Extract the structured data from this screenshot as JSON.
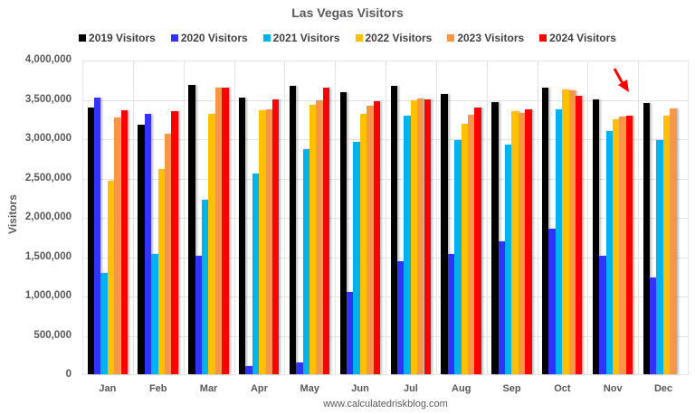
{
  "chart_data": {
    "type": "bar",
    "title": "Las Vegas Visitors",
    "xlabel": "",
    "ylabel": "Visitors",
    "ylim": [
      0,
      4000000
    ],
    "yticks": [
      "0",
      "500,000",
      "1,000,000",
      "1,500,000",
      "2,000,000",
      "2,500,000",
      "3,000,000",
      "3,500,000",
      "4,000,000"
    ],
    "grid": true,
    "legend_position": "top",
    "categories": [
      "Jan",
      "Feb",
      "Mar",
      "Apr",
      "May",
      "Jun",
      "Jul",
      "Aug",
      "Sep",
      "Oct",
      "Nov",
      "Dec"
    ],
    "series": [
      {
        "name": "2019 Visitors",
        "color": "#000000",
        "values": [
          3410000,
          3190000,
          3700000,
          3540000,
          3690000,
          3610000,
          3690000,
          3580000,
          3480000,
          3670000,
          3510000,
          3470000
        ]
      },
      {
        "name": "2020 Visitors",
        "color": "#3333ff",
        "values": [
          3540000,
          3330000,
          1520000,
          100000,
          150000,
          1050000,
          1440000,
          1540000,
          1700000,
          1860000,
          1510000,
          1240000
        ]
      },
      {
        "name": "2021 Visitors",
        "color": "#00b0f0",
        "values": [
          1290000,
          1540000,
          2230000,
          2570000,
          2880000,
          2970000,
          3310000,
          3000000,
          2940000,
          3390000,
          3110000,
          3000000
        ]
      },
      {
        "name": "2022 Visitors",
        "color": "#ffc000",
        "values": [
          2470000,
          2620000,
          3330000,
          3380000,
          3450000,
          3330000,
          3500000,
          3200000,
          3360000,
          3640000,
          3260000,
          3310000
        ]
      },
      {
        "name": "2023 Visitors",
        "color": "#f79646",
        "values": [
          3280000,
          3080000,
          3660000,
          3390000,
          3500000,
          3430000,
          3530000,
          3320000,
          3340000,
          3630000,
          3300000,
          3400000
        ]
      },
      {
        "name": "2024 Visitors",
        "color": "#ff0000",
        "values": [
          3380000,
          3370000,
          3670000,
          3510000,
          3660000,
          3490000,
          3510000,
          3410000,
          3390000,
          3560000,
          3310000,
          null
        ]
      }
    ],
    "annotations": [
      {
        "type": "arrow",
        "color": "#ff0000",
        "points_to": "Nov 2024 Visitors"
      }
    ],
    "source": "www.calculatedriskblog.com"
  }
}
